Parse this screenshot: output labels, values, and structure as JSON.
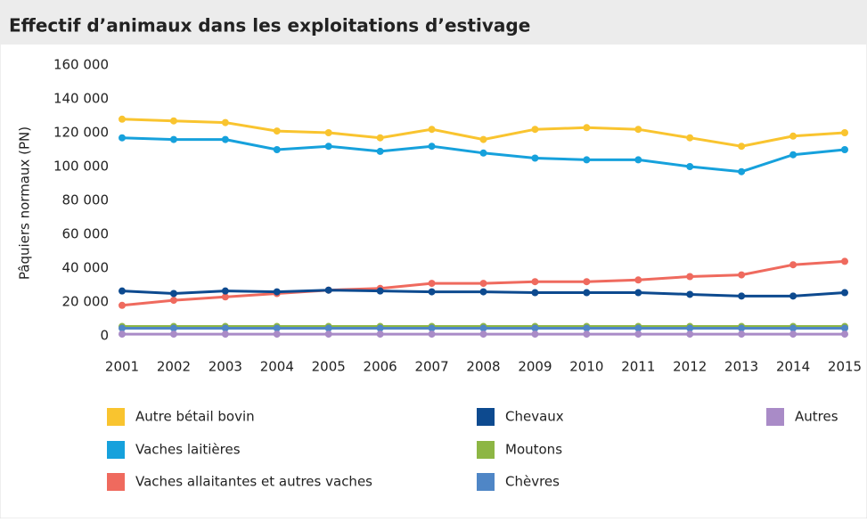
{
  "chart_data": {
    "type": "line",
    "title": "Effectif d’animaux dans les exploitations d’estivage",
    "y_label": "Pâquiers normaux (PN)",
    "categories": [
      "2001",
      "2002",
      "2003",
      "2004",
      "2005",
      "2006",
      "2007",
      "2008",
      "2009",
      "2010",
      "2011",
      "2012",
      "2013",
      "2014",
      "2015"
    ],
    "series": [
      {
        "name": "Autre bétail bovin",
        "color": "#f9c42f",
        "values": [
          128000,
          127000,
          126000,
          121000,
          120000,
          117000,
          122000,
          116000,
          122000,
          123000,
          122000,
          117000,
          112000,
          118000,
          120000
        ]
      },
      {
        "name": "Vaches laitières",
        "color": "#16a1dc",
        "values": [
          117000,
          116000,
          116000,
          110000,
          112000,
          109000,
          112000,
          108000,
          105000,
          104000,
          104000,
          100000,
          97000,
          107000,
          110000
        ]
      },
      {
        "name": "Vaches allaitantes et autres vaches",
        "color": "#ef6a5e",
        "values": [
          18000,
          21000,
          23000,
          25000,
          27000,
          28000,
          31000,
          31000,
          32000,
          32000,
          33000,
          35000,
          36000,
          42000,
          44000
        ]
      },
      {
        "name": "Chevaux",
        "color": "#0d4a8f",
        "values": [
          26500,
          25000,
          26500,
          26000,
          27000,
          26500,
          26000,
          26000,
          25500,
          25500,
          25500,
          24500,
          23500,
          23500,
          25500
        ]
      },
      {
        "name": "Moutons",
        "color": "#8db644",
        "values": [
          5500,
          5500,
          5500,
          5500,
          5500,
          5500,
          5500,
          5500,
          5500,
          5500,
          5500,
          5500,
          5500,
          5500,
          5500
        ]
      },
      {
        "name": "Chèvres",
        "color": "#4f86c6",
        "values": [
          4500,
          4500,
          4500,
          4500,
          4500,
          4500,
          4500,
          4500,
          4500,
          4500,
          4500,
          4500,
          4500,
          4500,
          4500
        ]
      },
      {
        "name": "Autres",
        "color": "#a98bc7",
        "values": [
          1000,
          1000,
          1000,
          1000,
          1000,
          1000,
          1000,
          1000,
          1000,
          1000,
          1000,
          1000,
          1000,
          1000,
          1000
        ]
      }
    ],
    "ylim": [
      0,
      160000
    ],
    "yticks": [
      0,
      {
        "value": 20000,
        "label": "20 000"
      },
      {
        "value": 40000,
        "label": "40 000"
      },
      {
        "value": 60000,
        "label": "60 000"
      },
      {
        "value": 80000,
        "label": "80 000"
      },
      {
        "value": 100000,
        "label": "100 000"
      },
      {
        "value": 120000,
        "label": "120 000"
      },
      {
        "value": 140000,
        "label": "140 000"
      },
      {
        "value": 160000,
        "label": "160 000"
      }
    ]
  }
}
